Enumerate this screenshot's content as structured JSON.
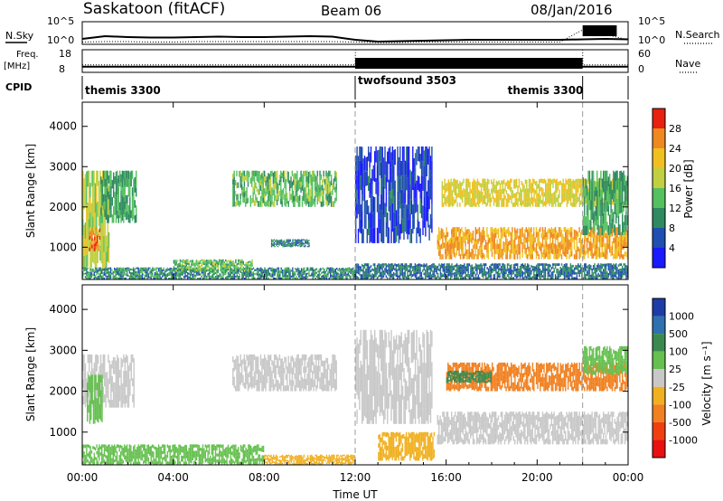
{
  "header": {
    "station": "Saskatoon (fitACF)",
    "beam": "Beam 06",
    "date": "08/Jan/2016"
  },
  "noise_panel": {
    "left_label": "N.Sky",
    "left_ticks": [
      "10^5",
      "10^0"
    ],
    "right_label": "N.Search",
    "right_ticks": [
      "10^5",
      "10^0"
    ]
  },
  "freq_panel": {
    "left_label_1": "Freq.",
    "left_label_2": "[MHz]",
    "left_ticks": [
      "18",
      "8"
    ],
    "right_label": "Nave",
    "right_ticks": [
      "60",
      "0"
    ]
  },
  "cpid": {
    "label": "CPID",
    "segments": [
      {
        "name": "themis 3300",
        "start": 0,
        "end": 12
      },
      {
        "name": "twofsound 3503",
        "start": 12,
        "end": 22
      },
      {
        "name": "themis 3300",
        "start": 22,
        "end": 24
      }
    ]
  },
  "x_axis": {
    "label": "Time UT",
    "ticks": [
      "00:00",
      "04:00",
      "08:00",
      "12:00",
      "16:00",
      "20:00",
      "00:00"
    ],
    "tick_hours": [
      0,
      4,
      8,
      12,
      16,
      20,
      24
    ]
  },
  "y_axis": {
    "label": "Slant Range [km]",
    "ticks": [
      "1000",
      "2000",
      "3000",
      "4000"
    ],
    "tick_values": [
      1000,
      2000,
      3000,
      4000
    ],
    "range": [
      200,
      4600
    ]
  },
  "power_colorbar": {
    "title": "Power [dB]",
    "ticks": [
      "4",
      "8",
      "12",
      "16",
      "20",
      "24",
      "28"
    ],
    "colors": [
      "#1a1aff",
      "#1f4fb0",
      "#2f8a60",
      "#55c060",
      "#c0d040",
      "#f0c020",
      "#f08820",
      "#e82010"
    ]
  },
  "velocity_colorbar": {
    "title": "Velocity [m s⁻¹]",
    "ticks": [
      "1000",
      "500",
      "100",
      "25",
      "-25",
      "-100",
      "-500",
      "-1000"
    ],
    "colors": [
      "#1e3ca8",
      "#2f70b0",
      "#3a8a50",
      "#66c050",
      "#c8c8c8",
      "#f0b020",
      "#f08020",
      "#f04010",
      "#e81010"
    ]
  },
  "chart_data": [
    {
      "type": "line",
      "title": "",
      "xlabel": "",
      "ylabel": "N.Sky",
      "xlim": [
        0,
        24
      ],
      "series": [
        {
          "name": "N.Sky",
          "x": [
            0,
            1,
            2,
            3,
            4,
            5,
            6,
            7,
            8,
            9,
            10,
            11,
            12,
            13,
            14,
            15,
            16,
            17,
            18,
            19,
            20,
            21,
            22,
            23,
            24
          ],
          "values": [
            1.2,
            1.8,
            1.6,
            1.5,
            1.5,
            1.6,
            1.7,
            1.6,
            1.6,
            1.7,
            1.8,
            1.7,
            1.0,
            0.6,
            0.7,
            0.8,
            0.9,
            1.0,
            1.0,
            1.0,
            1.0,
            1.0,
            1.1,
            1.2,
            1.1
          ]
        },
        {
          "name": "N.Search",
          "x": [
            0,
            1,
            2,
            3,
            4,
            5,
            6,
            7,
            8,
            9,
            10,
            11,
            12,
            13,
            14,
            15,
            16,
            17,
            18,
            19,
            20,
            21,
            22,
            23,
            24
          ],
          "values": [
            0.5,
            0.6,
            0.6,
            0.5,
            0.5,
            0.6,
            0.6,
            0.6,
            0.6,
            0.6,
            0.6,
            0.6,
            0.5,
            0.4,
            0.4,
            0.5,
            0.5,
            0.5,
            0.5,
            0.5,
            0.5,
            0.5,
            3.2,
            2.2,
            1.0
          ]
        }
      ]
    },
    {
      "type": "line",
      "title": "",
      "xlabel": "",
      "ylabel": "Freq. [MHz]",
      "xlim": [
        0,
        24
      ],
      "series": [
        {
          "name": "Freq",
          "x": [
            0,
            12,
            12.01,
            22,
            22.01,
            24
          ],
          "values": [
            10.5,
            10.5,
            10.5,
            10.5,
            10.5,
            10.5
          ]
        },
        {
          "name": "Nave",
          "x": [
            0,
            12,
            12.01,
            22,
            22.01,
            24
          ],
          "values": [
            20,
            20,
            60,
            60,
            20,
            20
          ]
        }
      ]
    },
    {
      "type": "heatmap",
      "title": "",
      "xlabel": "",
      "ylabel": "Slant Range [km]",
      "zlabel": "Power [dB]",
      "xlim": [
        0,
        24
      ],
      "ylim": [
        200,
        4600
      ],
      "regions": [
        {
          "x0": 0.0,
          "x1": 1.2,
          "y0": 400,
          "y1": 2900,
          "z": 18
        },
        {
          "x0": 0.3,
          "x1": 0.8,
          "y0": 900,
          "y1": 1500,
          "z": 26
        },
        {
          "x0": 0.8,
          "x1": 2.4,
          "y0": 1600,
          "y1": 2900,
          "z": 12
        },
        {
          "x0": 6.6,
          "x1": 11.2,
          "y0": 2000,
          "y1": 2900,
          "z": 14
        },
        {
          "x0": 8.3,
          "x1": 10.0,
          "y0": 1000,
          "y1": 1200,
          "z": 9
        },
        {
          "x0": 0.0,
          "x1": 12.0,
          "y0": 200,
          "y1": 500,
          "z": 10
        },
        {
          "x0": 4.0,
          "x1": 7.5,
          "y0": 400,
          "y1": 700,
          "z": 14
        },
        {
          "x0": 12.0,
          "x1": 15.4,
          "y0": 1100,
          "y1": 3500,
          "z": 5
        },
        {
          "x0": 15.8,
          "x1": 24.0,
          "y0": 2000,
          "y1": 2700,
          "z": 20
        },
        {
          "x0": 15.6,
          "x1": 24.0,
          "y0": 700,
          "y1": 1500,
          "z": 24
        },
        {
          "x0": 22.0,
          "x1": 24.0,
          "y0": 1300,
          "y1": 2900,
          "z": 12
        },
        {
          "x0": 12.0,
          "x1": 24.0,
          "y0": 200,
          "y1": 600,
          "z": 8
        }
      ]
    },
    {
      "type": "heatmap",
      "title": "",
      "xlabel": "Time UT",
      "ylabel": "Slant Range [km]",
      "zlabel": "Velocity [m s-1]",
      "xlim": [
        0,
        24
      ],
      "ylim": [
        200,
        4600
      ],
      "regions": [
        {
          "x0": 0.0,
          "x1": 2.3,
          "y0": 1600,
          "y1": 2900,
          "z": 0
        },
        {
          "x0": 0.2,
          "x1": 0.9,
          "y0": 1200,
          "y1": 2400,
          "z": 60
        },
        {
          "x0": 6.6,
          "x1": 11.2,
          "y0": 2000,
          "y1": 2900,
          "z": 0
        },
        {
          "x0": 0.0,
          "x1": 8.0,
          "y0": 200,
          "y1": 700,
          "z": 60
        },
        {
          "x0": 8.0,
          "x1": 12.0,
          "y0": 200,
          "y1": 450,
          "z": -60
        },
        {
          "x0": 12.0,
          "x1": 15.4,
          "y0": 1200,
          "y1": 3500,
          "z": 0
        },
        {
          "x0": 13.0,
          "x1": 15.5,
          "y0": 300,
          "y1": 1000,
          "z": -60
        },
        {
          "x0": 16.0,
          "x1": 24.0,
          "y0": 2000,
          "y1": 2700,
          "z": -200
        },
        {
          "x0": 16.0,
          "x1": 18.0,
          "y0": 2200,
          "y1": 2500,
          "z": 300
        },
        {
          "x0": 15.6,
          "x1": 24.0,
          "y0": 700,
          "y1": 1500,
          "z": 0
        },
        {
          "x0": 22.0,
          "x1": 24.0,
          "y0": 2400,
          "y1": 3100,
          "z": 60
        }
      ]
    }
  ]
}
